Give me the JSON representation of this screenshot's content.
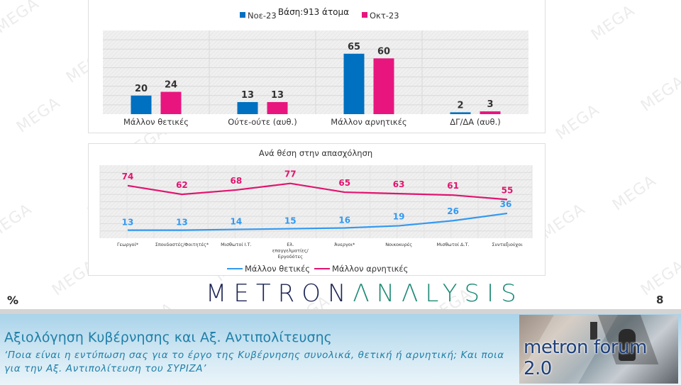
{
  "watermark": "MEGA",
  "chart_data": [
    {
      "type": "bar",
      "title": "Βάση:913 άτομα",
      "legend_position": "top",
      "categories": [
        "Μάλλον θετικές",
        "Ούτε-ούτε (αυθ.)",
        "Μάλλον αρνητικές",
        "ΔΓ/ΔΑ (αυθ.)"
      ],
      "series": [
        {
          "name": "Νοε-23",
          "color": "#0070c0",
          "values": [
            20,
            13,
            65,
            2
          ]
        },
        {
          "name": "Οκτ-23",
          "color": "#e8157f",
          "values": [
            24,
            13,
            60,
            3
          ]
        }
      ],
      "ylim": [
        0,
        90
      ],
      "grid": true,
      "xlabel": "",
      "ylabel": ""
    },
    {
      "type": "line",
      "title": "Ανά θέση στην απασχόληση",
      "legend_position": "bottom",
      "categories": [
        "Γεωργοί*",
        "Σπουδαστές/Φοιτητές*",
        "Μισθωτοί Ι.Τ.",
        "Ελ. επαγγελματίες/ Εργοδότες",
        "Άνεργοι*",
        "Νοικοκυρές",
        "Μισθωτοί Δ.Τ.",
        "Συνταξιούχοι"
      ],
      "series": [
        {
          "name": "Μάλλον θετικές",
          "color": "#3399f0",
          "values": [
            13,
            13,
            14,
            15,
            16,
            19,
            26,
            36
          ]
        },
        {
          "name": "Μάλλον αρνητικές",
          "color": "#e0156f",
          "values": [
            74,
            62,
            68,
            77,
            65,
            63,
            61,
            55
          ]
        }
      ],
      "ylim": [
        0,
        100
      ],
      "grid": true,
      "xlabel": "",
      "ylabel": ""
    }
  ],
  "logo": {
    "part1": "METRON",
    "part2": "ΛNΛLYSIS"
  },
  "percent_sign": "%",
  "page_number": "8",
  "footer": {
    "title": "Αξιολόγηση Κυβέρνησης και Αξ. Αντιπολίτευσης",
    "subtitle": "‘Ποια είναι η εντύπωση σας για το έργο της Κυβέρνησης συνολικά, θετική ή αρνητική; Και ποια για την Αξ. Αντιπολίτευση του ΣΥΡΙΖΑ’",
    "badge": "metron forum 2.0"
  }
}
